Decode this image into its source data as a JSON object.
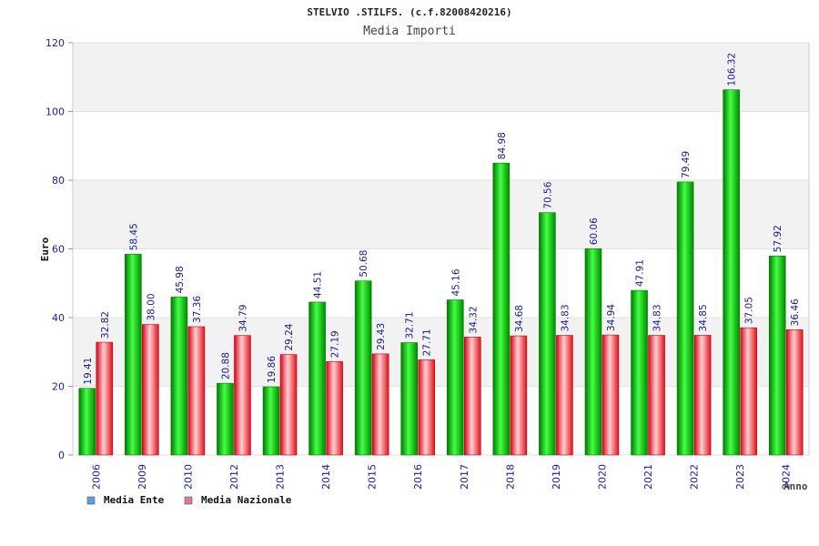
{
  "chart_data": {
    "type": "bar",
    "title": "STELVIO .STILFS. (c.f.82008420216)",
    "subtitle": "Media Importi",
    "ylabel": "Euro",
    "xlabel": "Anno",
    "ylim": [
      0,
      120
    ],
    "yticks": [
      0,
      20,
      40,
      60,
      80,
      100,
      120
    ],
    "grid": true,
    "legend_position": "bottom-left",
    "categories": [
      "2006",
      "2009",
      "2010",
      "2012",
      "2013",
      "2014",
      "2015",
      "2016",
      "2017",
      "2018",
      "2019",
      "2020",
      "2021",
      "2022",
      "2023",
      "2024"
    ],
    "series": [
      {
        "name": "Media Ente",
        "color": "#00c000",
        "legend_color": "#5aa0e6",
        "values": [
          19.41,
          58.45,
          45.98,
          20.88,
          19.86,
          44.51,
          50.68,
          32.71,
          45.16,
          84.98,
          70.56,
          60.06,
          47.91,
          79.49,
          106.32,
          57.92
        ],
        "labels": [
          "19.41",
          "58.45",
          "45.98",
          "20.88",
          "19.86",
          "44.51",
          "50.68",
          "32.71",
          "45.16",
          "84.98",
          "70.56",
          "60.06",
          "47.91",
          "79.49",
          "106.32",
          "57.92"
        ]
      },
      {
        "name": "Media Nazionale",
        "color": "#e8202a",
        "legend_color": "#d87aa0",
        "values": [
          32.82,
          38.0,
          37.36,
          34.79,
          29.24,
          27.19,
          29.43,
          27.71,
          34.32,
          34.68,
          34.83,
          34.94,
          34.83,
          34.85,
          37.05,
          36.46
        ],
        "labels": [
          "32.82",
          "38.00",
          "37.36",
          "34.79",
          "29.24",
          "27.19",
          "29.43",
          "27.71",
          "34.32",
          "34.68",
          "34.83",
          "34.94",
          "34.83",
          "34.85",
          "37.05",
          "36.46"
        ]
      }
    ]
  }
}
